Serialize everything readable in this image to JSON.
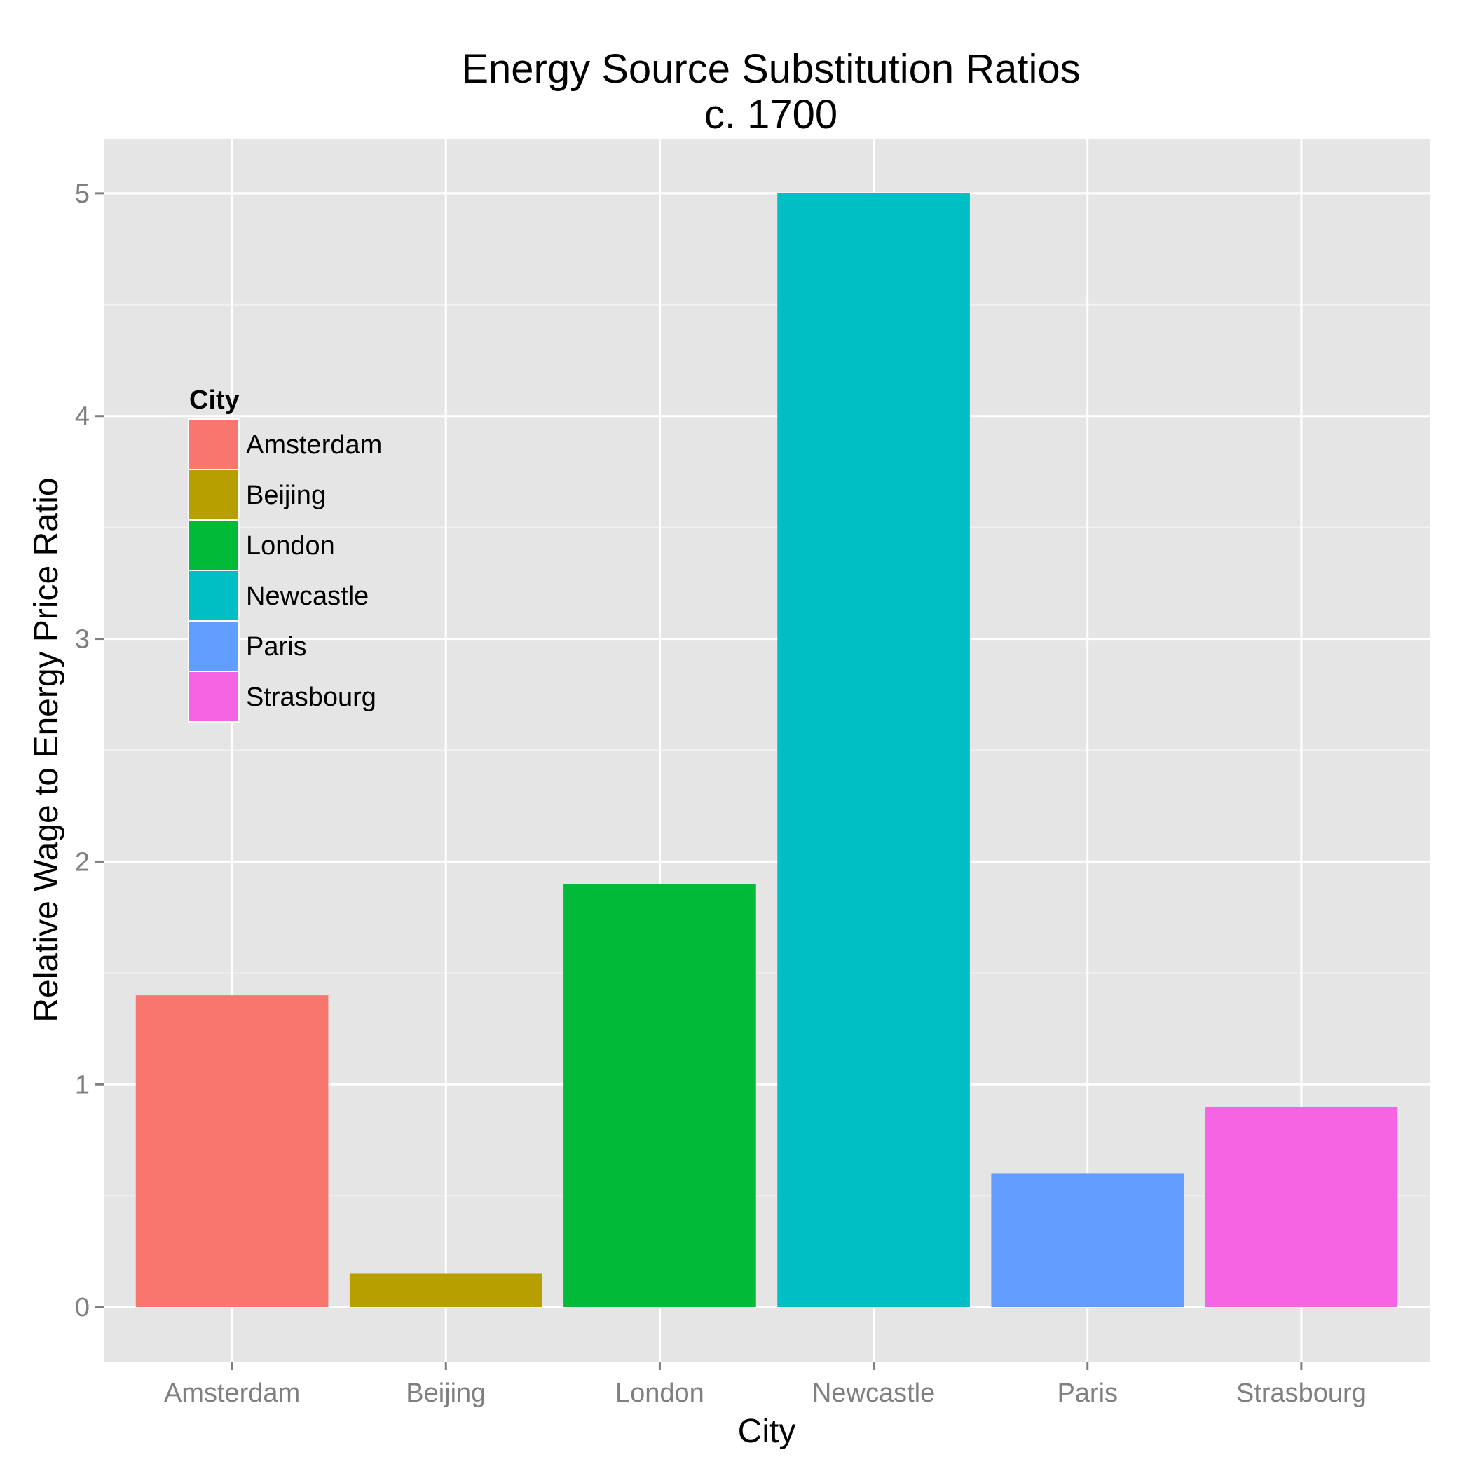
{
  "chart_data": {
    "type": "bar",
    "title_line1": "Energy Source Substitution Ratios",
    "title_line2": "c. 1700",
    "xlabel": "City",
    "ylabel": "Relative Wage to Energy Price Ratio",
    "categories": [
      "Amsterdam",
      "Beijing",
      "London",
      "Newcastle",
      "Paris",
      "Strasbourg"
    ],
    "values": [
      1.4,
      0.15,
      1.9,
      5.0,
      0.6,
      0.9
    ],
    "colors": [
      "#F8766D",
      "#B79F00",
      "#00BA38",
      "#00BFC4",
      "#619CFF",
      "#F564E3"
    ],
    "ylim": [
      -0.245,
      5.245
    ],
    "yticks": [
      0,
      1,
      2,
      3,
      4,
      5
    ],
    "ytick_labels": [
      "0",
      "1",
      "2",
      "3",
      "4",
      "5"
    ],
    "grid": true,
    "panel_background": "#E5E5E5",
    "grid_color": "#FFFFFF",
    "legend": {
      "title": "City",
      "placement": "upper-left inside",
      "entries": [
        "Amsterdam",
        "Beijing",
        "London",
        "Newcastle",
        "Paris",
        "Strasbourg"
      ]
    }
  }
}
